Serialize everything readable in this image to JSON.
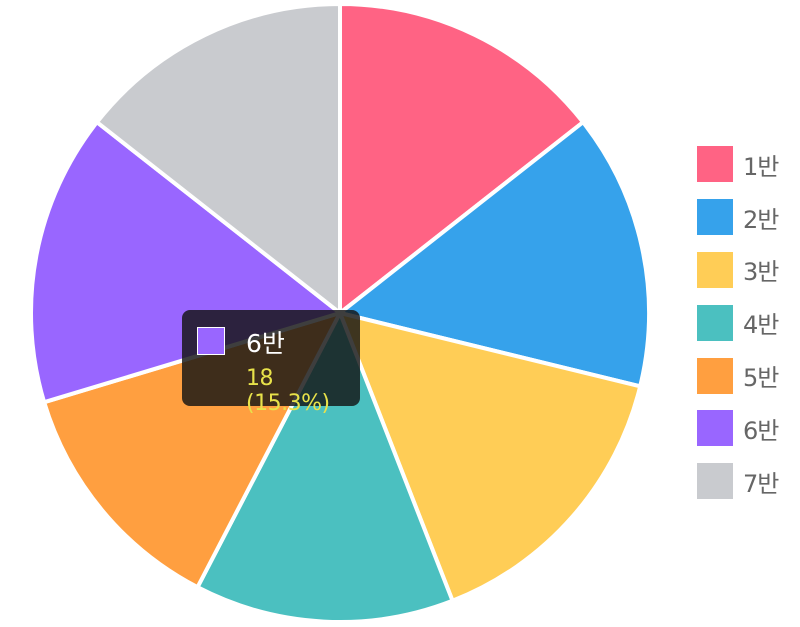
{
  "chart_data": {
    "type": "pie",
    "categories": [
      "1반",
      "2반",
      "3반",
      "4반",
      "5반",
      "6반",
      "7반"
    ],
    "values": [
      17,
      17,
      18,
      16,
      15,
      18,
      17
    ],
    "colors": [
      "#ff6384",
      "#36a2eb",
      "#ffcd56",
      "#4bc0c0",
      "#ff9f40",
      "#9966ff",
      "#c9cbcf"
    ],
    "legend_position": "right"
  },
  "tooltip": {
    "category": "6반",
    "value_text": "18 (15.3%)",
    "swatch_color": "#9966ff"
  }
}
